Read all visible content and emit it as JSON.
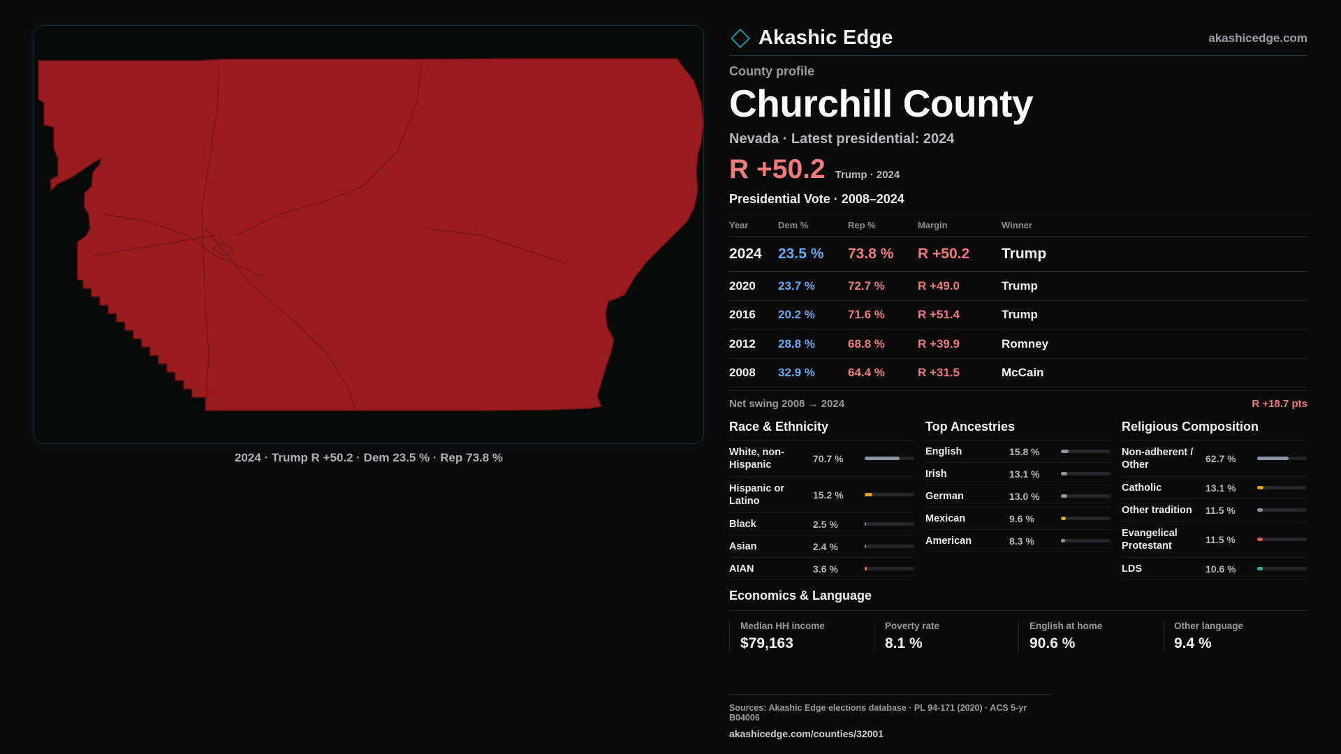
{
  "brand": {
    "name": "Akashic Edge",
    "url": "akashicedge.com"
  },
  "map": {
    "caption": "2024 · Trump R +50.2 · Dem 23.5 % · Rep 73.8 %",
    "fill_color": "#9b1c1f",
    "line_color": "#6a1215"
  },
  "header": {
    "profile_label": "County profile",
    "county_name": "Churchill County",
    "subtitle": "Nevada · Latest presidential: 2024",
    "headline_margin": "R +50.2",
    "headline_note": "Trump · 2024"
  },
  "vote": {
    "title": "Presidential Vote · 2008–2024",
    "columns": [
      "Year",
      "Dem %",
      "Rep %",
      "Margin",
      "Winner"
    ],
    "rows": [
      {
        "year": "2024",
        "dem": "23.5 %",
        "rep": "73.8 %",
        "margin": "R +50.2",
        "winner": "Trump"
      },
      {
        "year": "2020",
        "dem": "23.7 %",
        "rep": "72.7 %",
        "margin": "R +49.0",
        "winner": "Trump"
      },
      {
        "year": "2016",
        "dem": "20.2 %",
        "rep": "71.6 %",
        "margin": "R +51.4",
        "winner": "Trump"
      },
      {
        "year": "2012",
        "dem": "28.8 %",
        "rep": "68.8 %",
        "margin": "R +39.9",
        "winner": "Romney"
      },
      {
        "year": "2008",
        "dem": "32.9 %",
        "rep": "64.4 %",
        "margin": "R +31.5",
        "winner": "McCain"
      }
    ],
    "swing_label": "Net swing 2008 → 2024",
    "swing_value": "R +18.7 pts"
  },
  "race": {
    "title": "Race & Ethnicity",
    "items": [
      {
        "label": "White, non-Hispanic",
        "pct": "70.7 %",
        "value": 70.7,
        "color": "#8a96a8"
      },
      {
        "label": "Hispanic or Latino",
        "pct": "15.2 %",
        "value": 15.2,
        "color": "#e0a020"
      },
      {
        "label": "Black",
        "pct": "2.5 %",
        "value": 2.5,
        "color": "#8a7ad0"
      },
      {
        "label": "Asian",
        "pct": "2.4 %",
        "value": 2.4,
        "color": "#30b090"
      },
      {
        "label": "AIAN",
        "pct": "3.6 %",
        "value": 3.6,
        "color": "#e07a40"
      }
    ]
  },
  "ancestry": {
    "title": "Top Ancestries",
    "items": [
      {
        "label": "English",
        "pct": "15.8 %",
        "value": 15.8,
        "color": "#8a96a8"
      },
      {
        "label": "Irish",
        "pct": "13.1 %",
        "value": 13.1,
        "color": "#8a96a8"
      },
      {
        "label": "German",
        "pct": "13.0 %",
        "value": 13.0,
        "color": "#8a96a8"
      },
      {
        "label": "Mexican",
        "pct": "9.6 %",
        "value": 9.6,
        "color": "#e0a020"
      },
      {
        "label": "American",
        "pct": "8.3 %",
        "value": 8.3,
        "color": "#8a96a8"
      }
    ]
  },
  "religion": {
    "title": "Religious Composition",
    "items": [
      {
        "label": "Non-adherent / Other",
        "pct": "62.7 %",
        "value": 62.7,
        "color": "#8a96a8"
      },
      {
        "label": "Catholic",
        "pct": "13.1 %",
        "value": 13.1,
        "color": "#e0a020"
      },
      {
        "label": "Other tradition",
        "pct": "11.5 %",
        "value": 11.5,
        "color": "#8a96a8"
      },
      {
        "label": "Evangelical Protestant",
        "pct": "11.5 %",
        "value": 11.5,
        "color": "#e05a5a"
      },
      {
        "label": "LDS",
        "pct": "10.6 %",
        "value": 10.6,
        "color": "#30b0a0"
      }
    ]
  },
  "economics": {
    "title": "Economics & Language",
    "items": [
      {
        "label": "Median HH income",
        "value": "$79,163"
      },
      {
        "label": "Poverty rate",
        "value": "8.1 %"
      },
      {
        "label": "English at home",
        "value": "90.6 %"
      },
      {
        "label": "Other language",
        "value": "9.4 %"
      }
    ]
  },
  "footer": {
    "sources": "Sources: Akashic Edge elections database · PL 94-171 (2020) · ACS 5-yr B04006",
    "url": "akashicedge.com/counties/32001"
  }
}
